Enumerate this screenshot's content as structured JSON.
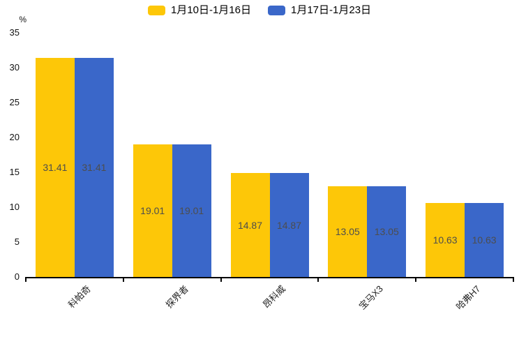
{
  "chart_data": {
    "type": "bar",
    "title": "",
    "categories": [
      "科帕奇",
      "探界者",
      "昂科威",
      "宝马X3",
      "哈弗H7"
    ],
    "series": [
      {
        "name": "1月10日-1月16日",
        "color": "#FDC708",
        "values": [
          31.41,
          19.01,
          14.87,
          13.05,
          10.63
        ]
      },
      {
        "name": "1月17日-1月23日",
        "color": "#3A67C9",
        "values": [
          31.41,
          19.01,
          14.87,
          13.05,
          10.63
        ]
      }
    ],
    "value_labels": [
      "31.41",
      "19.01",
      "14.87",
      "13.05",
      "10.63"
    ],
    "ylabel": "%",
    "ylim": [
      0,
      35
    ],
    "yticks": [
      "0",
      "5",
      "10",
      "15",
      "20",
      "25",
      "30",
      "35"
    ],
    "grid": false,
    "legend_position": "top-center",
    "value_label_position": "inside-center",
    "value_label_color": "#4d4d4d",
    "axis_color": "#000000",
    "background_color": "#ffffff"
  }
}
